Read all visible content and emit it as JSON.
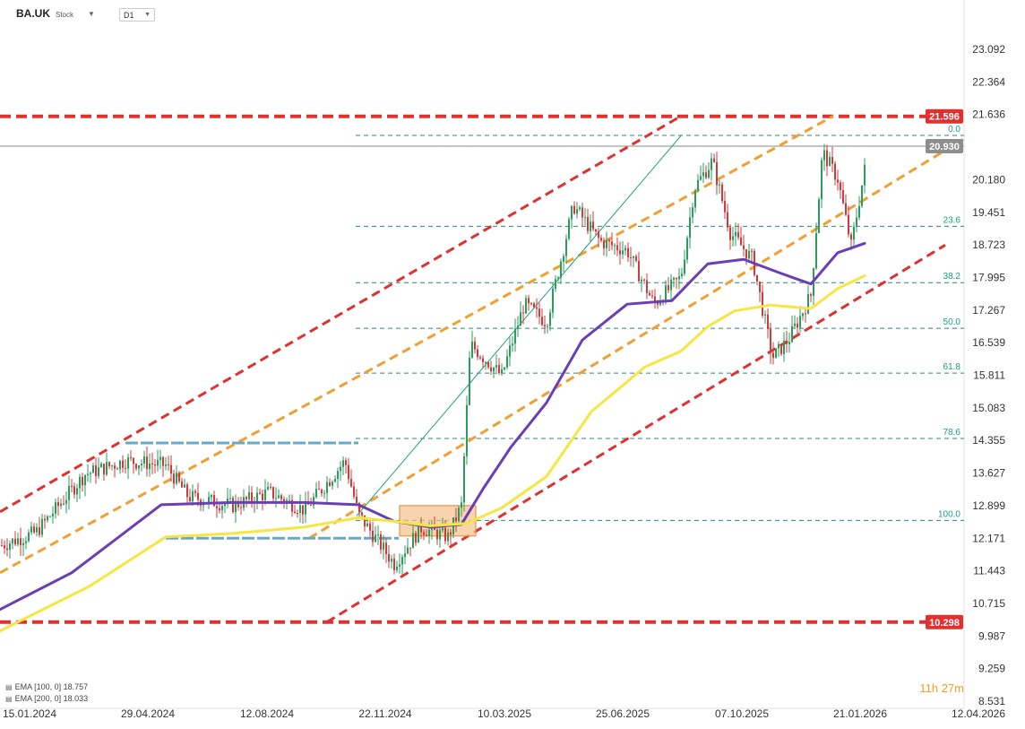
{
  "header": {
    "symbol": "BA.UK",
    "type_label": "Stock",
    "timeframe": "D1"
  },
  "legend": [
    {
      "label": "EMA [100, 0] 18.757",
      "color": "#6a3fb5"
    },
    {
      "label": "EMA [200, 0] 18.033",
      "color": "#f5e642"
    }
  ],
  "timer": {
    "hours": "11",
    "h_unit": "h",
    "minutes": "27",
    "m_unit": "m"
  },
  "chart_data": {
    "type": "line",
    "y_ticks": [
      "23.092",
      "22.364",
      "21.636",
      "20.180",
      "19.451",
      "18.723",
      "17.995",
      "17.267",
      "16.539",
      "15.811",
      "15.083",
      "14.355",
      "13.627",
      "12.899",
      "12.171",
      "11.443",
      "10.715",
      "9.987",
      "9.259",
      "8.531"
    ],
    "y_tick_values": [
      23.092,
      22.364,
      21.636,
      20.18,
      19.451,
      18.723,
      17.995,
      17.267,
      16.539,
      15.811,
      15.083,
      14.355,
      13.627,
      12.899,
      12.171,
      11.443,
      10.715,
      9.987,
      9.259,
      8.531
    ],
    "x_ticks": [
      "15.01.2024",
      "29.04.2024",
      "12.08.2024",
      "22.11.2024",
      "10.03.2025",
      "25.06.2025",
      "07.10.2025",
      "21.01.2026",
      "12.04.2026"
    ],
    "ylim": [
      8.4,
      23.5
    ],
    "price_labels": [
      {
        "value": 21.596,
        "text": "21.596",
        "color": "#e03030"
      },
      {
        "value": 20.93,
        "text": "20.930",
        "color": "#8e8e8e"
      },
      {
        "value": 10.298,
        "text": "10.298",
        "color": "#e03030"
      }
    ],
    "horizontal_levels": [
      21.596,
      10.298
    ],
    "current_price": 20.93,
    "fibonacci": [
      {
        "label": "0.0",
        "value": 21.17
      },
      {
        "label": "23.6",
        "value": 19.14
      },
      {
        "label": "38.2",
        "value": 17.88
      },
      {
        "label": "50.0",
        "value": 16.86
      },
      {
        "label": "61.8",
        "value": 15.86
      },
      {
        "label": "78.6",
        "value": 14.4
      },
      {
        "label": "100.0",
        "value": 12.57
      }
    ],
    "series": [
      {
        "name": "EMA [100, 0]",
        "color": "#6a3fb5",
        "x": [
          0,
          80,
          180,
          260,
          340,
          400,
          440,
          480,
          515,
          540,
          570,
          610,
          650,
          700,
          750,
          790,
          830,
          870,
          905,
          935,
          965
        ],
        "y": [
          10.58,
          11.4,
          12.92,
          12.97,
          12.97,
          12.92,
          12.55,
          12.42,
          12.48,
          13.3,
          14.2,
          15.2,
          16.6,
          17.4,
          17.48,
          18.3,
          18.4,
          18.1,
          17.85,
          18.55,
          18.757
        ]
      },
      {
        "name": "EMA [200, 0]",
        "color": "#f5e642",
        "x": [
          0,
          100,
          185,
          260,
          340,
          400,
          440,
          480,
          520,
          560,
          610,
          660,
          720,
          760,
          790,
          820,
          860,
          905,
          935,
          965
        ],
        "y": [
          10.1,
          11.1,
          12.2,
          12.28,
          12.42,
          12.63,
          12.55,
          12.45,
          12.5,
          12.85,
          13.55,
          15.0,
          16.0,
          16.35,
          16.9,
          17.25,
          17.38,
          17.3,
          17.75,
          18.033
        ]
      }
    ],
    "channels": [
      {
        "color": "#e03030",
        "x1": 0,
        "y1": 12.76,
        "x2": 760,
        "y2": 21.6
      },
      {
        "color": "#e03030",
        "x1": 365,
        "y1": 10.3,
        "x2": 1055,
        "y2": 18.72
      },
      {
        "color": "#f0a030",
        "x1": 0,
        "y1": 11.4,
        "x2": 930,
        "y2": 21.6
      },
      {
        "color": "#f0a030",
        "x1": 345,
        "y1": 12.17,
        "x2": 1075,
        "y2": 21.08
      }
    ],
    "trend_line": {
      "color": "#20a080",
      "x1": 398,
      "y1": 12.67,
      "x2": 760,
      "y2": 21.16
    },
    "range_box": {
      "x1": 446,
      "y1": 12.9,
      "x2": 531,
      "y2": 12.22
    },
    "blue_lines": [
      {
        "x1": 140,
        "x2": 400,
        "value": 14.3
      },
      {
        "x1": 185,
        "x2": 445,
        "value": 12.17
      }
    ]
  }
}
